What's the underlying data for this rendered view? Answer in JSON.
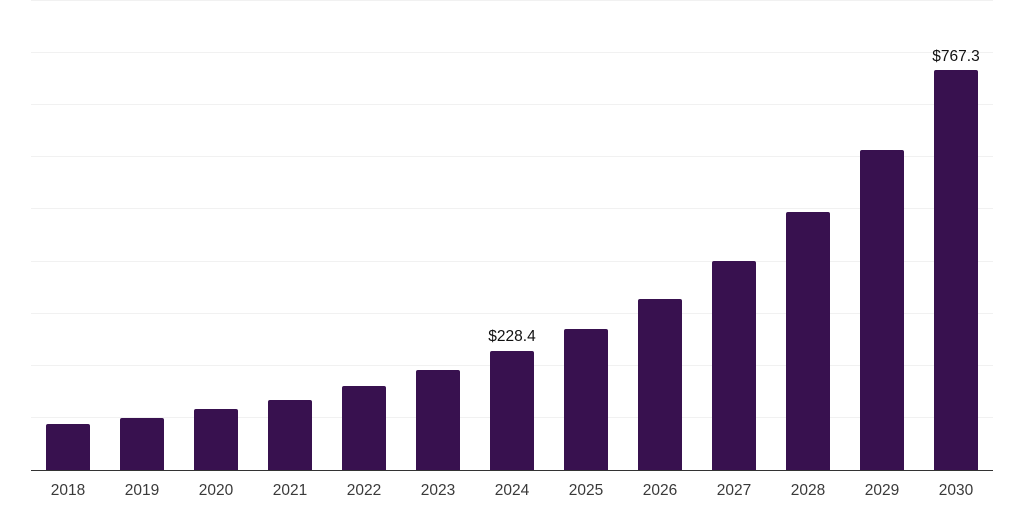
{
  "chart_data": {
    "type": "bar",
    "title": "",
    "xlabel": "",
    "ylabel": "",
    "categories": [
      "2018",
      "2019",
      "2020",
      "2021",
      "2022",
      "2023",
      "2024",
      "2025",
      "2026",
      "2027",
      "2028",
      "2029",
      "2030"
    ],
    "values": [
      88.0,
      100.2,
      116.5,
      134.0,
      161.3,
      191.3,
      228.4,
      271.2,
      328.5,
      400.5,
      495.6,
      614.2,
      767.3
    ],
    "data_labels": {
      "2024": "$228.4",
      "2030": "$767.3"
    },
    "ylim": [
      0,
      900
    ],
    "gridline_step": 100,
    "grid": true,
    "legend": "none",
    "y_axis_labels_visible": false
  },
  "colors": {
    "background": "#FFFFFF",
    "bar": "#38114F",
    "gridline": "#F1F1F1",
    "axis_line": "#333333",
    "tick_label": "#3A3A3A",
    "data_label": "#111111"
  }
}
